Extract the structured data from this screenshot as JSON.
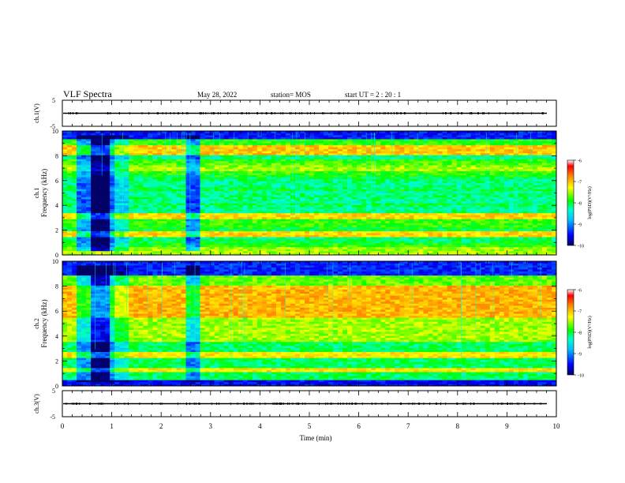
{
  "header": {
    "title": "VLF Spectra",
    "date": "May 28, 2022",
    "station": "station= MOS",
    "start": "start  UT =   2 : 20 : 1"
  },
  "chart_data": [
    {
      "type": "line",
      "name": "waveform-ch1",
      "ylabel": "ch.1(V)",
      "ylim": [
        -5,
        5
      ],
      "yticks": [
        "5",
        "-5"
      ],
      "xlim": [
        0,
        10
      ],
      "baseline": 0
    },
    {
      "type": "heatmap",
      "name": "spectrogram-ch1",
      "ylabel": "ch.1\nFrequency (kHz)",
      "ylim": [
        0,
        10
      ],
      "yticks": [
        "0",
        "2",
        "4",
        "6",
        "8",
        "10"
      ],
      "xlim": [
        0,
        10
      ],
      "colorbar": {
        "label": "log(PSD)(V²/Hz)",
        "range": [
          -10,
          -6
        ],
        "ticks": [
          "-6",
          "-7",
          "-8",
          "-9",
          "-10"
        ]
      }
    },
    {
      "type": "heatmap",
      "name": "spectrogram-ch2",
      "ylabel": "ch.2\nFrequency (kHz)",
      "ylim": [
        0,
        10
      ],
      "yticks": [
        "0",
        "2",
        "4",
        "6",
        "8",
        "10"
      ],
      "xlim": [
        0,
        10
      ],
      "colorbar": {
        "label": "log(PSD)(V²/Hz)",
        "range": [
          -10,
          -6
        ],
        "ticks": [
          "-6",
          "-7",
          "-8",
          "-9",
          "-10"
        ]
      }
    },
    {
      "type": "line",
      "name": "waveform-ch3",
      "ylabel": "ch.3(V)",
      "ylim": [
        -5,
        5
      ],
      "yticks": [
        "5",
        "-5"
      ],
      "xlim": [
        0,
        10
      ],
      "baseline": 0
    }
  ],
  "xaxis": {
    "label": "Time  (min)",
    "ticks": [
      "0",
      "1",
      "2",
      "3",
      "4",
      "5",
      "6",
      "7",
      "8",
      "9",
      "10"
    ]
  },
  "colors": {
    "colormap": [
      "#000080",
      "#0000ff",
      "#00bfff",
      "#00ffcc",
      "#00ff00",
      "#ffff00",
      "#ff8000",
      "#ff0000",
      "#ffffff"
    ]
  }
}
